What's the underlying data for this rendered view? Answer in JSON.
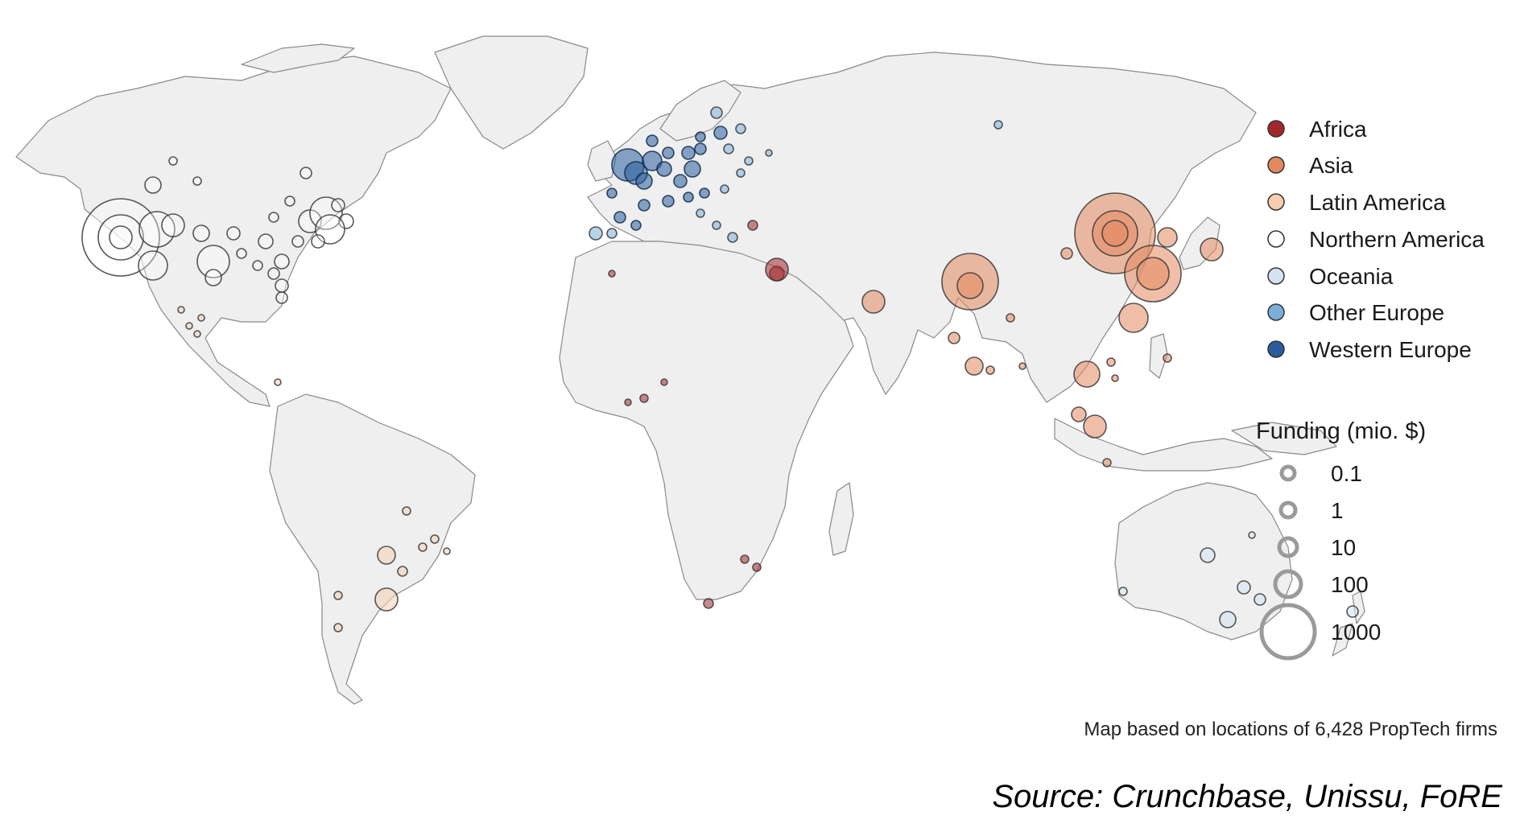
{
  "legend": {
    "regions": [
      {
        "label": "Africa",
        "color": "#a3262b"
      },
      {
        "label": "Asia",
        "color": "#e4895f"
      },
      {
        "label": "Latin America",
        "color": "#f6cdb0"
      },
      {
        "label": "Northern America",
        "color": "#ffffff"
      },
      {
        "label": "Oceania",
        "color": "#d4e3ef"
      },
      {
        "label": "Other Europe",
        "color": "#7ab0d8"
      },
      {
        "label": "Western Europe",
        "color": "#2a5c9c"
      }
    ],
    "funding_title": "Funding (mio. $)",
    "funding_levels": [
      "0.1",
      "1",
      "10",
      "100",
      "1000"
    ]
  },
  "note": "Map based on locations of 6,428 PropTech firms",
  "source": "Source: Crunchbase, Unissu, FoRE"
}
